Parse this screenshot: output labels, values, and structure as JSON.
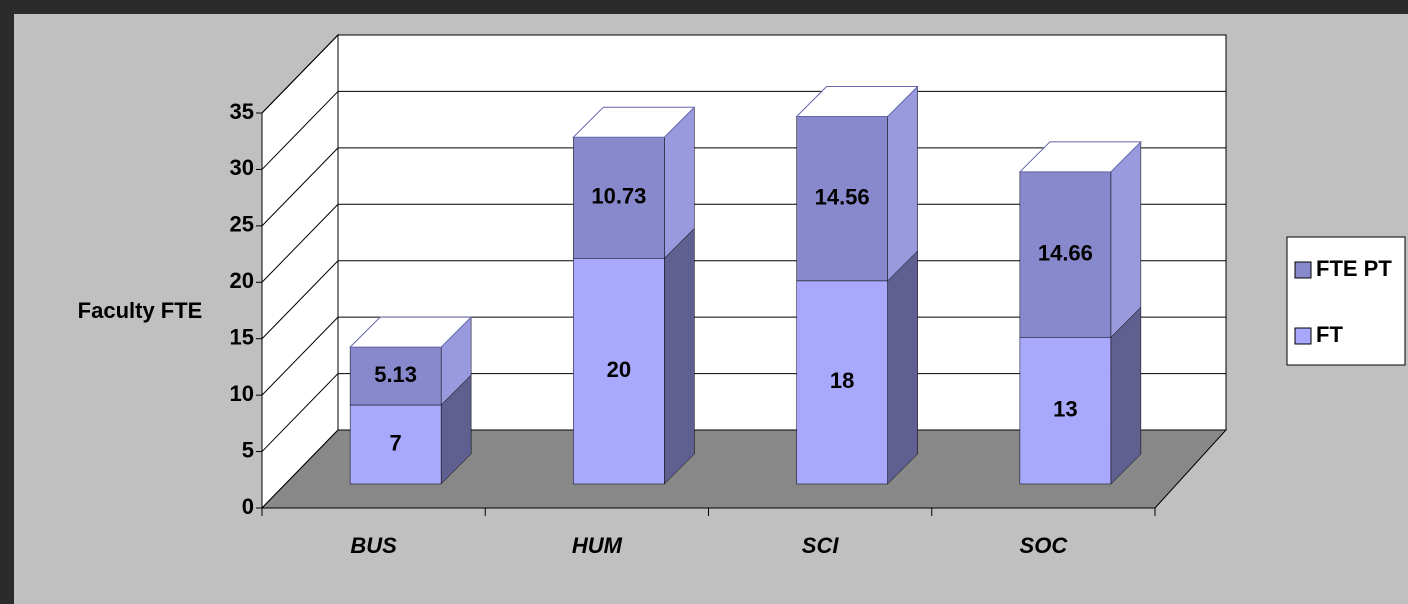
{
  "chart_data": {
    "type": "bar3d_stacked",
    "y_label": "Faculty FTE",
    "categories": [
      "BUS",
      "HUM",
      "SCI",
      "SOC"
    ],
    "series": [
      {
        "name": "FT",
        "color": "#a8a8fc",
        "values": [
          7,
          20,
          18,
          13
        ]
      },
      {
        "name": "FTE PT",
        "color": "#8888cc",
        "values": [
          5.13,
          10.73,
          14.56,
          14.66
        ]
      }
    ],
    "ylim": [
      0,
      35
    ],
    "yticks": [
      0,
      5,
      10,
      15,
      20,
      25,
      30,
      35
    ],
    "grid": true,
    "legend": "right"
  }
}
